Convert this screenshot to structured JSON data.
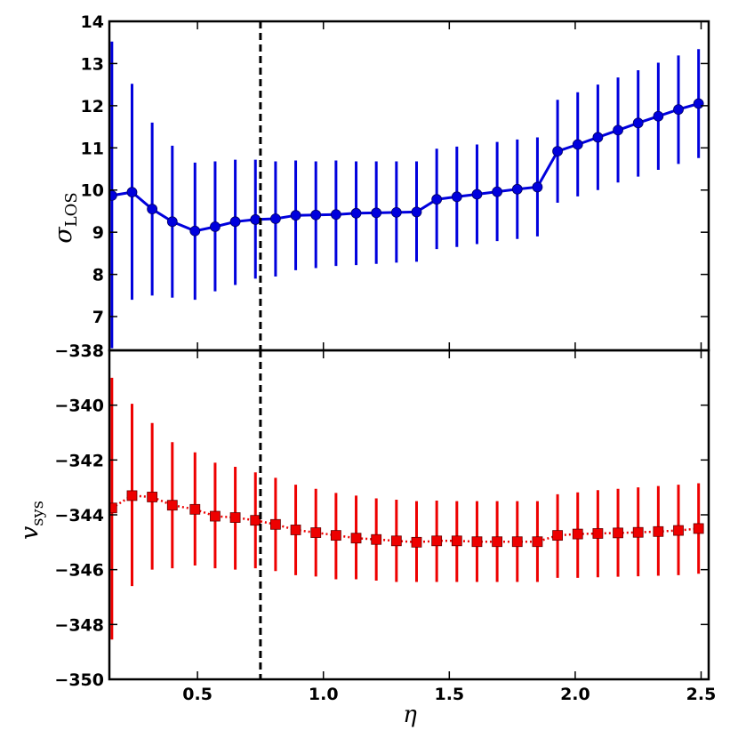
{
  "chart_data": [
    {
      "type": "line",
      "panel": "top",
      "ylabel_main": "σ",
      "ylabel_sub": "LOS",
      "xlim": [
        0.15,
        2.53
      ],
      "ylim": [
        6.2,
        14
      ],
      "yticks": [
        7,
        8,
        9,
        10,
        11,
        12,
        13,
        14
      ],
      "ytick_labels": [
        "7",
        "8",
        "9",
        "10",
        "11",
        "12",
        "13",
        "14"
      ],
      "series": [
        {
          "color": "#0000dd",
          "marker": "circle",
          "line": "solid",
          "x": [
            0.16,
            0.24,
            0.32,
            0.4,
            0.49,
            0.57,
            0.65,
            0.73,
            0.81,
            0.89,
            0.97,
            1.05,
            1.13,
            1.21,
            1.29,
            1.37,
            1.45,
            1.53,
            1.61,
            1.69,
            1.77,
            1.85,
            1.93,
            2.01,
            2.09,
            2.17,
            2.25,
            2.33,
            2.41,
            2.49
          ],
          "y": [
            9.87,
            9.95,
            9.55,
            9.25,
            9.03,
            9.13,
            9.25,
            9.3,
            9.32,
            9.4,
            9.41,
            9.42,
            9.45,
            9.46,
            9.47,
            9.48,
            9.78,
            9.84,
            9.9,
            9.96,
            10.02,
            10.07,
            10.92,
            11.08,
            11.25,
            11.42,
            11.59,
            11.75,
            11.91,
            12.05
          ],
          "yerr_low": [
            6.25,
            7.4,
            7.5,
            7.45,
            7.4,
            7.6,
            7.75,
            7.9,
            7.95,
            8.1,
            8.15,
            8.2,
            8.22,
            8.25,
            8.28,
            8.3,
            8.6,
            8.65,
            8.72,
            8.79,
            8.84,
            8.9,
            9.7,
            9.85,
            10.0,
            10.18,
            10.32,
            10.48,
            10.62,
            10.76
          ],
          "yerr_high": [
            13.52,
            12.52,
            11.6,
            11.05,
            10.65,
            10.68,
            10.72,
            10.72,
            10.68,
            10.7,
            10.68,
            10.7,
            10.68,
            10.68,
            10.68,
            10.68,
            10.98,
            11.03,
            11.08,
            11.14,
            11.2,
            11.25,
            12.14,
            12.32,
            12.5,
            12.67,
            12.84,
            13.02,
            13.19,
            13.34
          ]
        }
      ],
      "vline_x": 0.75,
      "vline_style": "dashed"
    },
    {
      "type": "line",
      "panel": "bottom",
      "xlabel": "η",
      "ylabel_main": "v",
      "ylabel_sub": "sys",
      "xlim": [
        0.15,
        2.53
      ],
      "ylim": [
        -350,
        -338
      ],
      "xticks": [
        0.5,
        1.0,
        1.5,
        2.0,
        2.5
      ],
      "xtick_labels": [
        "0.5",
        "1.0",
        "1.5",
        "2.0",
        "2.5"
      ],
      "yticks": [
        -350,
        -348,
        -346,
        -344,
        -342,
        -340,
        -338
      ],
      "ytick_labels": [
        "−350",
        "−348",
        "−346",
        "−344",
        "−342",
        "−340",
        "−338"
      ],
      "series": [
        {
          "color": "#ee0000",
          "marker": "square",
          "line": "dotted",
          "x": [
            0.16,
            0.24,
            0.32,
            0.4,
            0.49,
            0.57,
            0.65,
            0.73,
            0.81,
            0.89,
            0.97,
            1.05,
            1.13,
            1.21,
            1.29,
            1.37,
            1.45,
            1.53,
            1.61,
            1.69,
            1.77,
            1.85,
            1.93,
            2.01,
            2.09,
            2.17,
            2.25,
            2.33,
            2.41,
            2.49
          ],
          "y": [
            -343.75,
            -343.3,
            -343.35,
            -343.65,
            -343.8,
            -344.05,
            -344.1,
            -344.2,
            -344.35,
            -344.55,
            -344.65,
            -344.75,
            -344.85,
            -344.9,
            -344.95,
            -345.0,
            -344.95,
            -344.95,
            -344.98,
            -344.98,
            -344.98,
            -344.98,
            -344.75,
            -344.7,
            -344.68,
            -344.66,
            -344.64,
            -344.61,
            -344.57,
            -344.5
          ],
          "yerr_low": [
            -348.55,
            -346.6,
            -346.0,
            -345.95,
            -345.85,
            -345.95,
            -346.0,
            -345.95,
            -346.05,
            -346.2,
            -346.25,
            -346.35,
            -346.35,
            -346.4,
            -346.45,
            -346.45,
            -346.45,
            -346.45,
            -346.45,
            -346.45,
            -346.45,
            -346.45,
            -346.3,
            -346.3,
            -346.28,
            -346.26,
            -346.24,
            -346.22,
            -346.2,
            -346.15
          ],
          "yerr_high": [
            -339.0,
            -339.95,
            -340.65,
            -341.35,
            -341.72,
            -342.1,
            -342.25,
            -342.45,
            -342.65,
            -342.9,
            -343.05,
            -343.2,
            -343.3,
            -343.4,
            -343.45,
            -343.5,
            -343.48,
            -343.5,
            -343.5,
            -343.5,
            -343.5,
            -343.5,
            -343.25,
            -343.18,
            -343.1,
            -343.05,
            -343.0,
            -342.95,
            -342.9,
            -342.85
          ]
        }
      ],
      "vline_x": 0.75,
      "vline_style": "dashed"
    }
  ]
}
